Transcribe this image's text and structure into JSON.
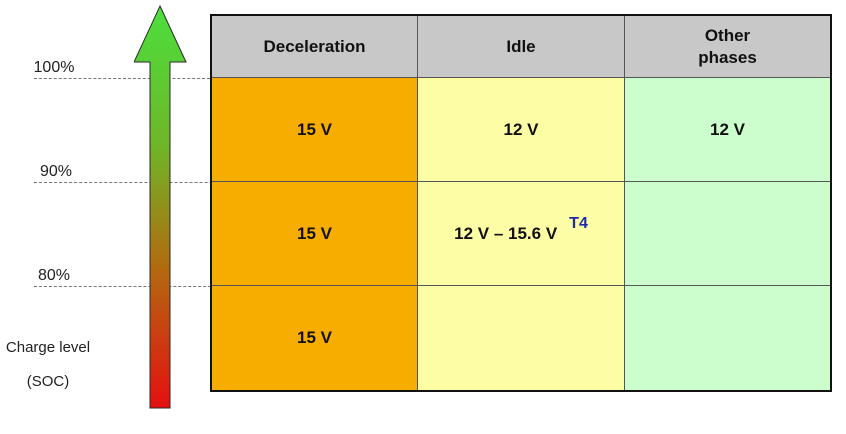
{
  "soc_levels": [
    "100%",
    "90%",
    "80%"
  ],
  "axis_label_line1": "Charge level",
  "axis_label_line2": "(SOC)",
  "columns": [
    "Deceleration",
    "Idle",
    "Other phases"
  ],
  "other_header_line1": "Other",
  "other_header_line2": "phases",
  "rows": [
    {
      "deceleration": "15 V",
      "idle": "12 V",
      "other": "12 V"
    },
    {
      "deceleration": "15 V",
      "idle": "12 V – 15.6 V",
      "idle_tag": "T4",
      "other": ""
    },
    {
      "deceleration": "15 V",
      "idle": "",
      "other": ""
    }
  ],
  "colors": {
    "deceleration": "#f6ad00",
    "idle": "#fdfda5",
    "other": "#ccfdcc",
    "header": "#c8c8c8",
    "arrow_top": "#55e04a",
    "arrow_bottom": "#e01010",
    "tag": "#1c2ba8"
  }
}
